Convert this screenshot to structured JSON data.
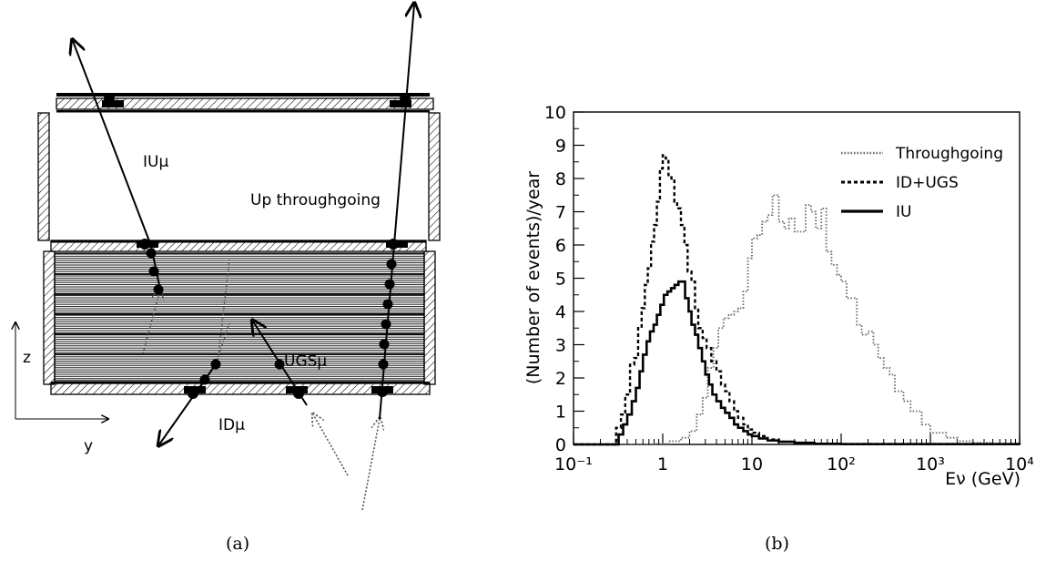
{
  "panel_a": {
    "caption": "(a)",
    "labels": {
      "iu_mu": "IUμ",
      "up_throughgoing": "Up throughgoing",
      "ugs_mu": "UGSμ",
      "id_mu": "IDμ",
      "axis_z": "z",
      "axis_y": "y"
    }
  },
  "panel_b": {
    "caption": "(b)"
  },
  "chart_data": {
    "type": "line",
    "xscale": "log",
    "xlim": [
      0.1,
      10000
    ],
    "ylim": [
      0,
      10
    ],
    "xlabel": "Eν (GeV)",
    "ylabel": "(Number of events)/year",
    "x_tick_labels": [
      "10⁻¹",
      "1",
      "10",
      "10²",
      "10³",
      "10⁴"
    ],
    "y_tick_labels": [
      "0",
      "1",
      "2",
      "3",
      "4",
      "5",
      "6",
      "7",
      "8",
      "9",
      "10"
    ],
    "legend_position": "top-right",
    "grid": false,
    "series": [
      {
        "name": "Throughgoing",
        "style": "dotted",
        "color": "#666666",
        "points": [
          [
            0.1,
            0
          ],
          [
            0.5,
            0
          ],
          [
            0.8,
            0.02
          ],
          [
            1.2,
            0.1
          ],
          [
            1.6,
            0.2
          ],
          [
            2.0,
            0.4
          ],
          [
            2.4,
            0.9
          ],
          [
            2.8,
            1.4
          ],
          [
            3.2,
            2.3
          ],
          [
            3.7,
            2.9
          ],
          [
            4.2,
            3.5
          ],
          [
            4.8,
            3.8
          ],
          [
            5.5,
            3.9
          ],
          [
            6.3,
            4.0
          ],
          [
            7,
            4.1
          ],
          [
            8,
            4.6
          ],
          [
            9,
            5.6
          ],
          [
            10,
            6.2
          ],
          [
            11.5,
            6.3
          ],
          [
            13,
            6.7
          ],
          [
            15,
            6.9
          ],
          [
            17,
            7.5
          ],
          [
            20,
            6.7
          ],
          [
            23,
            6.5
          ],
          [
            26,
            6.8
          ],
          [
            30,
            6.4
          ],
          [
            35,
            6.4
          ],
          [
            40,
            7.2
          ],
          [
            46,
            7.0
          ],
          [
            52,
            6.5
          ],
          [
            60,
            7.1
          ],
          [
            68,
            5.8
          ],
          [
            78,
            5.4
          ],
          [
            90,
            5.1
          ],
          [
            100,
            4.9
          ],
          [
            115,
            4.4
          ],
          [
            130,
            4.4
          ],
          [
            150,
            3.6
          ],
          [
            170,
            3.3
          ],
          [
            200,
            3.4
          ],
          [
            230,
            3.0
          ],
          [
            260,
            2.6
          ],
          [
            300,
            2.3
          ],
          [
            350,
            2.1
          ],
          [
            400,
            1.6
          ],
          [
            500,
            1.3
          ],
          [
            600,
            1.0
          ],
          [
            800,
            0.6
          ],
          [
            1000,
            0.35
          ],
          [
            1500,
            0.2
          ],
          [
            2000,
            0.1
          ],
          [
            3000,
            0.05
          ],
          [
            5000,
            0.02
          ],
          [
            10000,
            0
          ]
        ]
      },
      {
        "name": "ID+UGS",
        "style": "dashed",
        "color": "#000000",
        "points": [
          [
            0.1,
            0
          ],
          [
            0.27,
            0
          ],
          [
            0.3,
            0.5
          ],
          [
            0.34,
            0.9
          ],
          [
            0.38,
            1.5
          ],
          [
            0.43,
            2.4
          ],
          [
            0.48,
            2.6
          ],
          [
            0.53,
            3.5
          ],
          [
            0.58,
            4.1
          ],
          [
            0.63,
            4.8
          ],
          [
            0.68,
            5.3
          ],
          [
            0.74,
            6.1
          ],
          [
            0.8,
            6.6
          ],
          [
            0.86,
            7.3
          ],
          [
            0.93,
            8.3
          ],
          [
            1.0,
            8.7
          ],
          [
            1.08,
            8.6
          ],
          [
            1.16,
            8.1
          ],
          [
            1.25,
            8.0
          ],
          [
            1.35,
            7.3
          ],
          [
            1.45,
            7.1
          ],
          [
            1.6,
            6.6
          ],
          [
            1.75,
            6.0
          ],
          [
            1.9,
            5.2
          ],
          [
            2.1,
            4.9
          ],
          [
            2.3,
            4.1
          ],
          [
            2.5,
            3.5
          ],
          [
            2.8,
            3.2
          ],
          [
            3.1,
            2.9
          ],
          [
            3.5,
            2.5
          ],
          [
            4.0,
            2.2
          ],
          [
            4.5,
            1.8
          ],
          [
            5.0,
            1.6
          ],
          [
            5.6,
            1.3
          ],
          [
            6.3,
            1.0
          ],
          [
            7,
            0.8
          ],
          [
            8,
            0.6
          ],
          [
            9,
            0.45
          ],
          [
            10,
            0.35
          ],
          [
            12,
            0.25
          ],
          [
            15,
            0.15
          ],
          [
            20,
            0.08
          ],
          [
            30,
            0.05
          ],
          [
            50,
            0.02
          ],
          [
            100,
            0.01
          ],
          [
            10000,
            0
          ]
        ]
      },
      {
        "name": "IU",
        "style": "solid",
        "color": "#000000",
        "points": [
          [
            0.1,
            0
          ],
          [
            0.29,
            0
          ],
          [
            0.32,
            0.3
          ],
          [
            0.36,
            0.6
          ],
          [
            0.4,
            0.9
          ],
          [
            0.45,
            1.3
          ],
          [
            0.5,
            1.7
          ],
          [
            0.55,
            2.2
          ],
          [
            0.6,
            2.7
          ],
          [
            0.66,
            3.1
          ],
          [
            0.72,
            3.4
          ],
          [
            0.79,
            3.6
          ],
          [
            0.86,
            3.9
          ],
          [
            0.94,
            4.2
          ],
          [
            1.03,
            4.5
          ],
          [
            1.13,
            4.6
          ],
          [
            1.24,
            4.7
          ],
          [
            1.36,
            4.8
          ],
          [
            1.5,
            4.9
          ],
          [
            1.63,
            4.9
          ],
          [
            1.78,
            4.4
          ],
          [
            1.95,
            4.0
          ],
          [
            2.1,
            3.6
          ],
          [
            2.3,
            3.3
          ],
          [
            2.5,
            2.9
          ],
          [
            2.75,
            2.5
          ],
          [
            3.0,
            2.1
          ],
          [
            3.3,
            1.8
          ],
          [
            3.6,
            1.5
          ],
          [
            4.0,
            1.3
          ],
          [
            4.5,
            1.1
          ],
          [
            5,
            0.95
          ],
          [
            5.6,
            0.8
          ],
          [
            6.3,
            0.6
          ],
          [
            7,
            0.5
          ],
          [
            8,
            0.4
          ],
          [
            9,
            0.3
          ],
          [
            10,
            0.25
          ],
          [
            12,
            0.18
          ],
          [
            15,
            0.12
          ],
          [
            20,
            0.08
          ],
          [
            30,
            0.05
          ],
          [
            50,
            0.02
          ],
          [
            100,
            0.01
          ],
          [
            10000,
            0
          ]
        ]
      }
    ]
  }
}
